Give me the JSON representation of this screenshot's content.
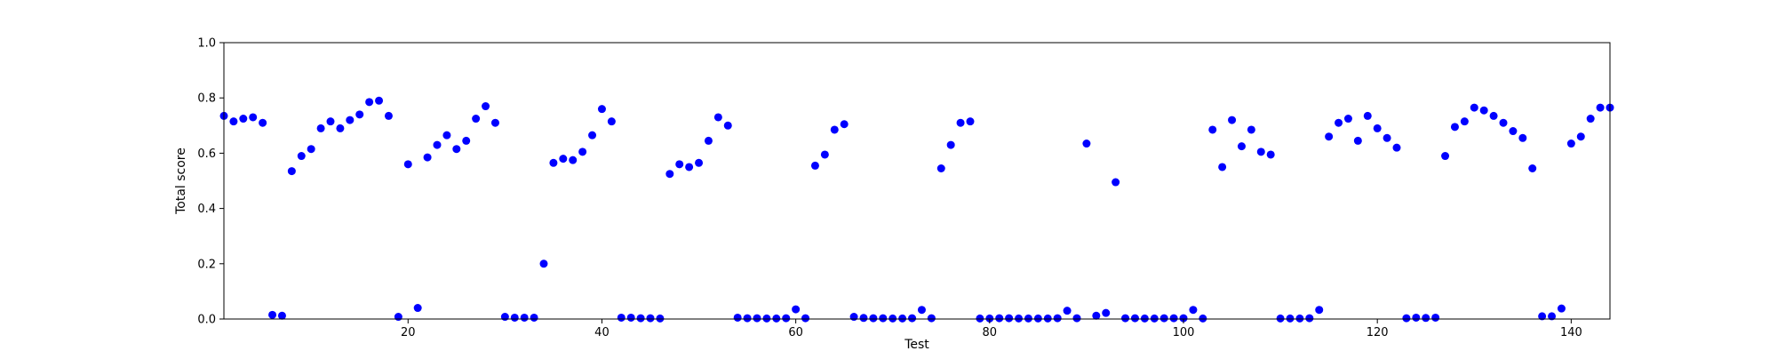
{
  "chart_data": {
    "type": "scatter",
    "title": "",
    "xlabel": "Test",
    "ylabel": "Total score",
    "xlim": [
      1,
      144
    ],
    "ylim": [
      0.0,
      1.0
    ],
    "grid": false,
    "marker_color": "#0000ff",
    "x_ticks": [
      20,
      40,
      60,
      80,
      100,
      120,
      140
    ],
    "x_tick_labels": [
      "20",
      "40",
      "60",
      "80",
      "100",
      "120",
      "140"
    ],
    "y_ticks": [
      0.0,
      0.2,
      0.4,
      0.6,
      0.8,
      1.0
    ],
    "y_tick_labels": [
      "0.0",
      "0.2",
      "0.4",
      "0.6",
      "0.8",
      "1.0"
    ],
    "x": [
      1,
      2,
      3,
      4,
      5,
      6,
      7,
      8,
      9,
      10,
      11,
      12,
      13,
      14,
      15,
      16,
      17,
      18,
      19,
      20,
      21,
      22,
      23,
      24,
      25,
      26,
      27,
      28,
      29,
      30,
      31,
      32,
      33,
      34,
      35,
      36,
      37,
      38,
      39,
      40,
      41,
      42,
      43,
      44,
      45,
      46,
      47,
      48,
      49,
      50,
      51,
      52,
      53,
      54,
      55,
      56,
      57,
      58,
      59,
      60,
      61,
      62,
      63,
      64,
      65,
      66,
      67,
      68,
      69,
      70,
      71,
      72,
      73,
      74,
      75,
      76,
      77,
      78,
      79,
      80,
      81,
      82,
      83,
      84,
      85,
      86,
      87,
      88,
      89,
      90,
      91,
      92,
      93,
      94,
      95,
      96,
      97,
      98,
      99,
      100,
      101,
      102,
      103,
      104,
      105,
      106,
      107,
      108,
      109,
      110,
      111,
      112,
      113,
      114,
      115,
      116,
      117,
      118,
      119,
      120,
      121,
      122,
      123,
      124,
      125,
      126,
      127,
      128,
      129,
      130,
      131,
      132,
      133,
      134,
      135,
      136,
      137,
      138,
      139,
      140,
      141,
      142,
      143,
      144
    ],
    "y": [
      0.735,
      0.715,
      0.725,
      0.73,
      0.71,
      0.015,
      0.012,
      0.535,
      0.59,
      0.615,
      0.69,
      0.715,
      0.69,
      0.72,
      0.74,
      0.785,
      0.79,
      0.735,
      0.008,
      0.56,
      0.04,
      0.585,
      0.63,
      0.665,
      0.615,
      0.645,
      0.725,
      0.77,
      0.71,
      0.008,
      0.005,
      0.005,
      0.005,
      0.2,
      0.565,
      0.58,
      0.575,
      0.605,
      0.665,
      0.76,
      0.715,
      0.005,
      0.005,
      0.003,
      0.003,
      0.002,
      0.525,
      0.56,
      0.55,
      0.565,
      0.645,
      0.73,
      0.7,
      0.005,
      0.003,
      0.003,
      0.002,
      0.002,
      0.003,
      0.035,
      0.003,
      0.555,
      0.595,
      0.685,
      0.705,
      0.008,
      0.004,
      0.003,
      0.003,
      0.002,
      0.002,
      0.003,
      0.033,
      0.003,
      0.545,
      0.63,
      0.71,
      0.715,
      0.002,
      0.002,
      0.003,
      0.003,
      0.002,
      0.002,
      0.002,
      0.002,
      0.003,
      0.03,
      0.003,
      0.635,
      0.012,
      0.022,
      0.495,
      0.003,
      0.003,
      0.002,
      0.002,
      0.003,
      0.003,
      0.003,
      0.033,
      0.002,
      0.685,
      0.55,
      0.72,
      0.625,
      0.685,
      0.605,
      0.595,
      0.002,
      0.002,
      0.002,
      0.003,
      0.033,
      0.66,
      0.71,
      0.725,
      0.645,
      0.735,
      0.69,
      0.655,
      0.62,
      0.003,
      0.005,
      0.004,
      0.005,
      0.59,
      0.695,
      0.715,
      0.765,
      0.755,
      0.735,
      0.71,
      0.68,
      0.655,
      0.545,
      0.01,
      0.01,
      0.038,
      0.635,
      0.66,
      0.725,
      0.765,
      0.765
    ]
  }
}
